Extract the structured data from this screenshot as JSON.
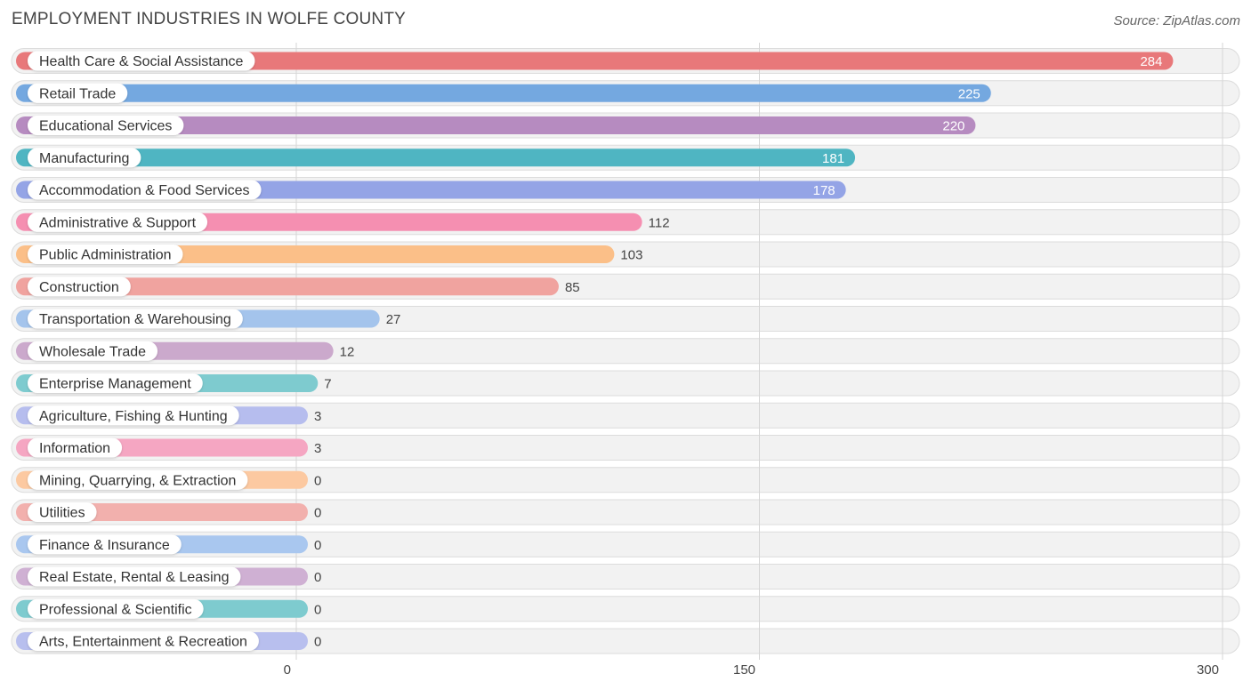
{
  "header": {
    "title": "EMPLOYMENT INDUSTRIES IN WOLFE COUNTY",
    "source": "Source: ZipAtlas.com"
  },
  "chart_data": {
    "type": "bar",
    "orientation": "horizontal",
    "title": "EMPLOYMENT INDUSTRIES IN WOLFE COUNTY",
    "xlim": [
      0,
      300
    ],
    "xticks": [
      0,
      150,
      300
    ],
    "grid": true,
    "categories": [
      "Health Care & Social Assistance",
      "Retail Trade",
      "Educational Services",
      "Manufacturing",
      "Accommodation & Food Services",
      "Administrative & Support",
      "Public Administration",
      "Construction",
      "Transportation & Warehousing",
      "Wholesale Trade",
      "Enterprise Management",
      "Agriculture, Fishing & Hunting",
      "Information",
      "Mining, Quarrying, & Extraction",
      "Utilities",
      "Finance & Insurance",
      "Real Estate, Rental & Leasing",
      "Professional & Scientific",
      "Arts, Entertainment & Recreation"
    ],
    "values": [
      284,
      225,
      220,
      181,
      178,
      112,
      103,
      85,
      27,
      12,
      7,
      3,
      3,
      0,
      0,
      0,
      0,
      0,
      0
    ],
    "colors": [
      "#e8787a",
      "#74a8e0",
      "#b68bc0",
      "#4fb5c2",
      "#94a4e6",
      "#f58fb1",
      "#fbbf88",
      "#f0a39f",
      "#a4c4ec",
      "#cba9cc",
      "#7ecbcf",
      "#b6bdee",
      "#f5a6c2",
      "#fcc9a1",
      "#f2b0ad",
      "#a9c7ef",
      "#cfb0d3",
      "#7ecbcf",
      "#b8bfee"
    ]
  }
}
